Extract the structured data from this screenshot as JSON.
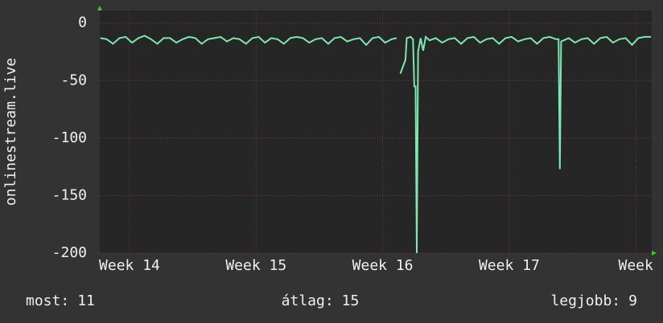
{
  "chart_data": {
    "type": "line",
    "y_label": "onlinestream.live",
    "x": [
      13.77,
      13.82,
      13.87,
      13.92,
      13.97,
      14.02,
      14.07,
      14.12,
      14.17,
      14.22,
      14.27,
      14.32,
      14.37,
      14.42,
      14.47,
      14.52,
      14.57,
      14.62,
      14.67,
      14.72,
      14.77,
      14.82,
      14.87,
      14.92,
      14.97,
      15.02,
      15.07,
      15.12,
      15.17,
      15.22,
      15.27,
      15.32,
      15.37,
      15.42,
      15.47,
      15.52,
      15.57,
      15.62,
      15.67,
      15.72,
      15.77,
      15.82,
      15.87,
      15.92,
      15.97,
      16.02,
      16.07,
      16.11,
      16.13,
      16.14,
      16.16,
      16.18,
      16.19,
      16.22,
      16.24,
      16.25,
      16.26,
      16.27,
      16.28,
      16.3,
      16.32,
      16.34,
      16.37,
      16.42,
      16.47,
      16.52,
      16.57,
      16.62,
      16.67,
      16.72,
      16.77,
      16.82,
      16.87,
      16.92,
      16.97,
      17.02,
      17.07,
      17.12,
      17.17,
      17.22,
      17.27,
      17.32,
      17.37,
      17.39,
      17.4,
      17.41,
      17.47,
      17.52,
      17.57,
      17.62,
      17.67,
      17.72,
      17.77,
      17.82,
      17.87,
      17.92,
      17.97,
      18.02,
      18.07,
      18.12
    ],
    "series": [
      {
        "name": "onlinestream.live",
        "color": "#7de8b0",
        "values": [
          -13,
          -14,
          -18,
          -13,
          -12,
          -17,
          -13,
          -11,
          -14,
          -18,
          -13,
          -13,
          -17,
          -14,
          -12,
          -13,
          -18,
          -14,
          -13,
          -12,
          -16,
          -13,
          -14,
          -18,
          -13,
          -12,
          -17,
          -13,
          -14,
          -18,
          -13,
          -12,
          -13,
          -17,
          -14,
          -13,
          -18,
          -13,
          -12,
          -16,
          -14,
          -13,
          -19,
          -13,
          -12,
          -17,
          -14,
          -13,
          null,
          -44,
          -38,
          -32,
          -13,
          -12,
          -14,
          -55,
          -55,
          -200,
          -25,
          -13,
          -24,
          -12,
          -15,
          -13,
          -17,
          -14,
          -13,
          -18,
          -13,
          -12,
          -17,
          -14,
          -13,
          -18,
          -13,
          -12,
          -16,
          -14,
          -13,
          -18,
          -13,
          -12,
          -14,
          -14,
          -127,
          -16,
          -13,
          -17,
          -14,
          -13,
          -18,
          -13,
          -12,
          -17,
          -14,
          -13,
          -19,
          -13,
          -12,
          -12
        ]
      }
    ],
    "xlim": [
      13.765,
      18.126
    ],
    "xticks": [
      {
        "value": 14,
        "label": "Week 14"
      },
      {
        "value": 15,
        "label": "Week 15"
      },
      {
        "value": 16,
        "label": "Week 16"
      },
      {
        "value": 17,
        "label": "Week 17"
      },
      {
        "value": 18,
        "label": "Week"
      }
    ],
    "ylim": [
      -200,
      11
    ],
    "yticks": [
      0,
      -50,
      -100,
      -150,
      -200
    ],
    "grid": true,
    "stats": [
      {
        "label": "most:",
        "value": 11
      },
      {
        "label": "átlag:",
        "value": 15
      },
      {
        "label": "legjobb:",
        "value": 9
      }
    ]
  }
}
